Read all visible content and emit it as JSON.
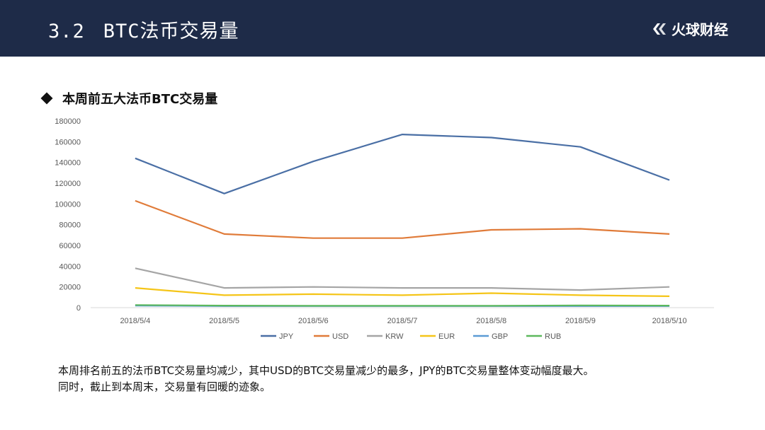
{
  "header": {
    "section_number": "3.2",
    "title": "BTC法币交易量",
    "brand": "火球财经"
  },
  "section_heading": "本周前五大法币BTC交易量",
  "caption": {
    "line1": "本周排名前五的法币BTC交易量均减少，其中USD的BTC交易量减少的最多，JPY的BTC交易量整体变动幅度最大。",
    "line2": "同时，截止到本周末，交易量有回暖的迹象。"
  },
  "chart_data": {
    "type": "line",
    "categories": [
      "2018/5/4",
      "2018/5/5",
      "2018/5/6",
      "2018/5/7",
      "2018/5/8",
      "2018/5/9",
      "2018/5/10"
    ],
    "ylim": [
      0,
      180000
    ],
    "yticks": [
      0,
      20000,
      40000,
      60000,
      80000,
      100000,
      120000,
      140000,
      160000,
      180000
    ],
    "grid": false,
    "legend": "bottom",
    "series": [
      {
        "name": "JPY",
        "color": "#4a6fa5",
        "values": [
          144000,
          110000,
          141000,
          167000,
          164000,
          155000,
          123000
        ]
      },
      {
        "name": "USD",
        "color": "#e07b39",
        "values": [
          103000,
          71000,
          67000,
          67000,
          75000,
          76000,
          71000
        ]
      },
      {
        "name": "KRW",
        "color": "#a5a5a5",
        "values": [
          38000,
          19000,
          20000,
          19000,
          19000,
          17000,
          20000
        ]
      },
      {
        "name": "EUR",
        "color": "#f5c518",
        "values": [
          19000,
          12000,
          13000,
          12000,
          14000,
          12000,
          11000
        ]
      },
      {
        "name": "GBP",
        "color": "#5b9bd5",
        "values": [
          2000,
          1500,
          1500,
          1500,
          1500,
          1500,
          1500
        ]
      },
      {
        "name": "RUB",
        "color": "#5cb85c",
        "values": [
          2500,
          2000,
          1800,
          1800,
          1800,
          2200,
          2000
        ]
      }
    ]
  }
}
